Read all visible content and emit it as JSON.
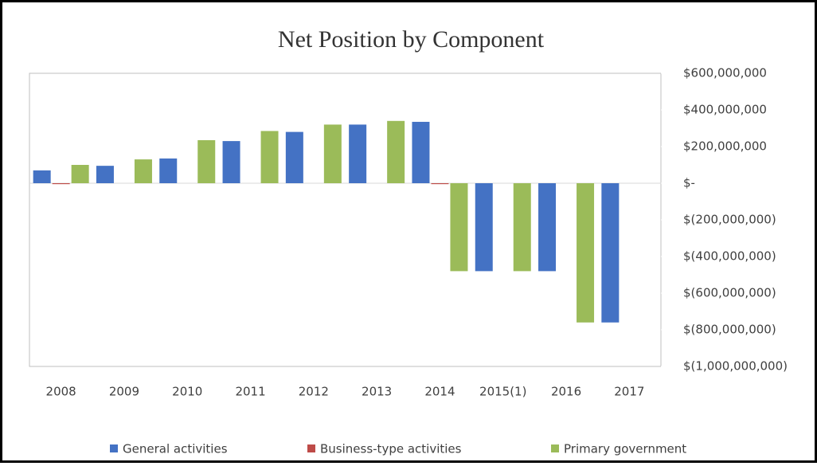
{
  "chart_data": {
    "type": "bar",
    "title": "Net Position by Component",
    "categories": [
      "2008",
      "2009",
      "2010",
      "2011",
      "2012",
      "2013",
      "2014",
      "2015(1)",
      "2016",
      "2017"
    ],
    "series": [
      {
        "name": "General activities",
        "color": "#4472c4",
        "values": [
          70000000,
          95000000,
          135000000,
          230000000,
          280000000,
          320000000,
          335000000,
          -480000000,
          -480000000,
          -760000000
        ]
      },
      {
        "name": "Business-type activities",
        "color": "#be4b48",
        "values": [
          -5000000,
          null,
          null,
          null,
          null,
          null,
          -5000000,
          null,
          null,
          null
        ]
      },
      {
        "name": "Primary government",
        "color": "#9bbb59",
        "values": [
          100000000,
          130000000,
          235000000,
          285000000,
          320000000,
          340000000,
          -480000000,
          -480000000,
          -760000000,
          null
        ]
      }
    ],
    "ylim": [
      -1000000000,
      600000000
    ],
    "yticks": [
      {
        "value": 600000000,
        "label": "$600,000,000"
      },
      {
        "value": 400000000,
        "label": "$400,000,000"
      },
      {
        "value": 200000000,
        "label": "$200,000,000"
      },
      {
        "value": 0,
        "label": "$-"
      },
      {
        "value": -200000000,
        "label": "$(200,000,000)"
      },
      {
        "value": -400000000,
        "label": "$(400,000,000)"
      },
      {
        "value": -600000000,
        "label": "$(600,000,000)"
      },
      {
        "value": -800000000,
        "label": "$(800,000,000)"
      },
      {
        "value": -1000000000,
        "label": "$(1,000,000,000)"
      }
    ],
    "legend": "bottom"
  }
}
